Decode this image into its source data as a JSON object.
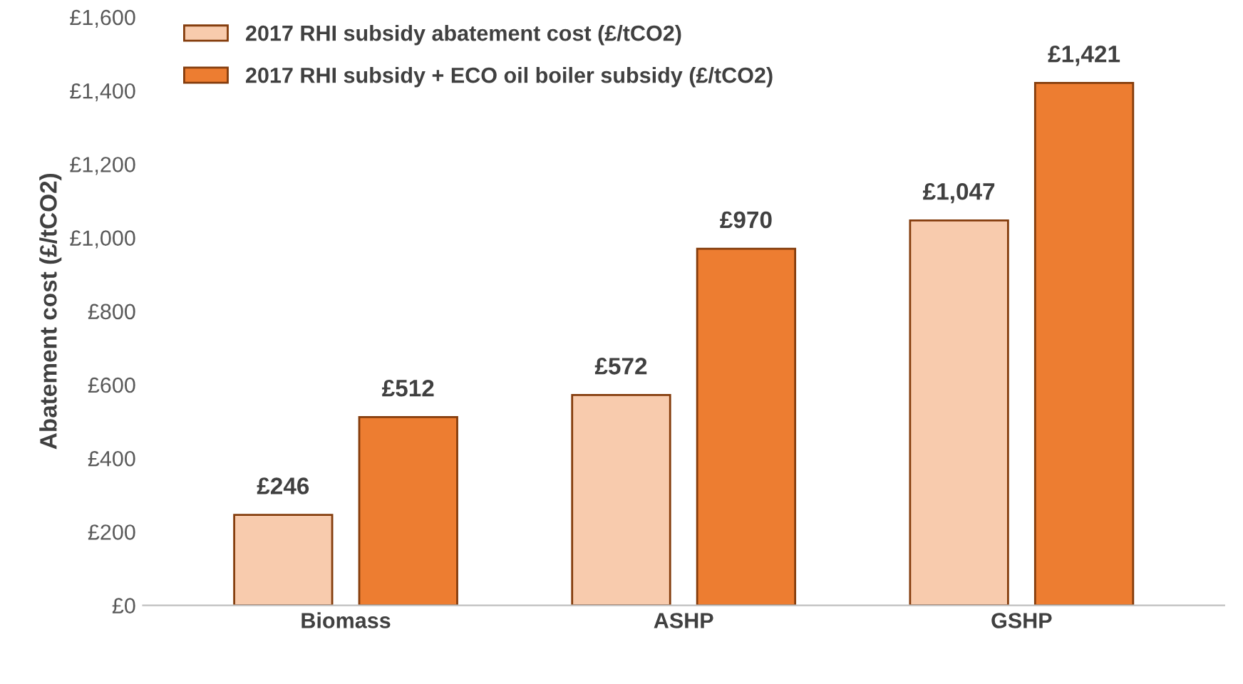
{
  "chart_data": {
    "type": "bar",
    "ylabel": "Abatement cost (£/tCO2)",
    "categories": [
      "Biomass",
      "ASHP",
      "GSHP"
    ],
    "series": [
      {
        "name": "2017 RHI subsidy abatement cost (£/tCO2)",
        "color": "#f8cbad",
        "values": [
          246,
          572,
          1047
        ],
        "value_labels": [
          "£246",
          "£572",
          "£1,047"
        ]
      },
      {
        "name": "2017 RHI subsidy + ECO oil boiler subsidy (£/tCO2)",
        "color": "#ed7d31",
        "values": [
          512,
          970,
          1421
        ],
        "value_labels": [
          "£512",
          "£970",
          "£1,421"
        ]
      }
    ],
    "ylim": [
      0,
      1600
    ],
    "yticks": [
      {
        "value": 0,
        "label": "£0"
      },
      {
        "value": 200,
        "label": "£200"
      },
      {
        "value": 400,
        "label": "£400"
      },
      {
        "value": 600,
        "label": "£600"
      },
      {
        "value": 800,
        "label": "£800"
      },
      {
        "value": 1000,
        "label": "£1,000"
      },
      {
        "value": 1200,
        "label": "£1,200"
      },
      {
        "value": 1400,
        "label": "£1,400"
      },
      {
        "value": 1600,
        "label": "£1,600"
      }
    ],
    "grid": false,
    "legend": "top left"
  }
}
